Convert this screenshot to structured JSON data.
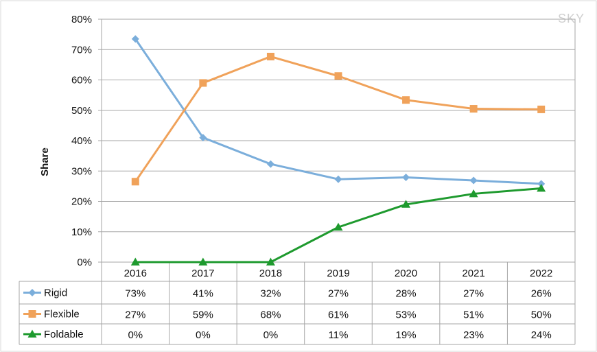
{
  "watermark": "SKY",
  "chart_data": {
    "type": "line",
    "ylabel": "Share",
    "xlabel": "",
    "ylim": [
      0,
      80
    ],
    "yticks": [
      "0%",
      "10%",
      "20%",
      "30%",
      "40%",
      "50%",
      "60%",
      "70%",
      "80%"
    ],
    "categories": [
      "2016",
      "2017",
      "2018",
      "2019",
      "2020",
      "2021",
      "2022"
    ],
    "grid": true,
    "legend": "data-table",
    "series": [
      {
        "name": "Rigid",
        "color": "#7baedb",
        "marker": "diamond",
        "values": [
          73.5,
          41,
          32.3,
          27.3,
          27.9,
          26.9,
          25.8
        ],
        "labels": [
          "73%",
          "41%",
          "32%",
          "27%",
          "28%",
          "27%",
          "26%"
        ]
      },
      {
        "name": "Flexible",
        "color": "#f0a25a",
        "marker": "square",
        "values": [
          26.5,
          59,
          67.7,
          61.3,
          53.4,
          50.5,
          50.3
        ],
        "labels": [
          "27%",
          "59%",
          "68%",
          "61%",
          "53%",
          "51%",
          "50%"
        ]
      },
      {
        "name": "Foldable",
        "color": "#1e9a2e",
        "marker": "triangle",
        "values": [
          0,
          0,
          0,
          11.5,
          19,
          22.5,
          24.3
        ],
        "labels": [
          "0%",
          "0%",
          "0%",
          "11%",
          "19%",
          "23%",
          "24%"
        ]
      }
    ]
  }
}
